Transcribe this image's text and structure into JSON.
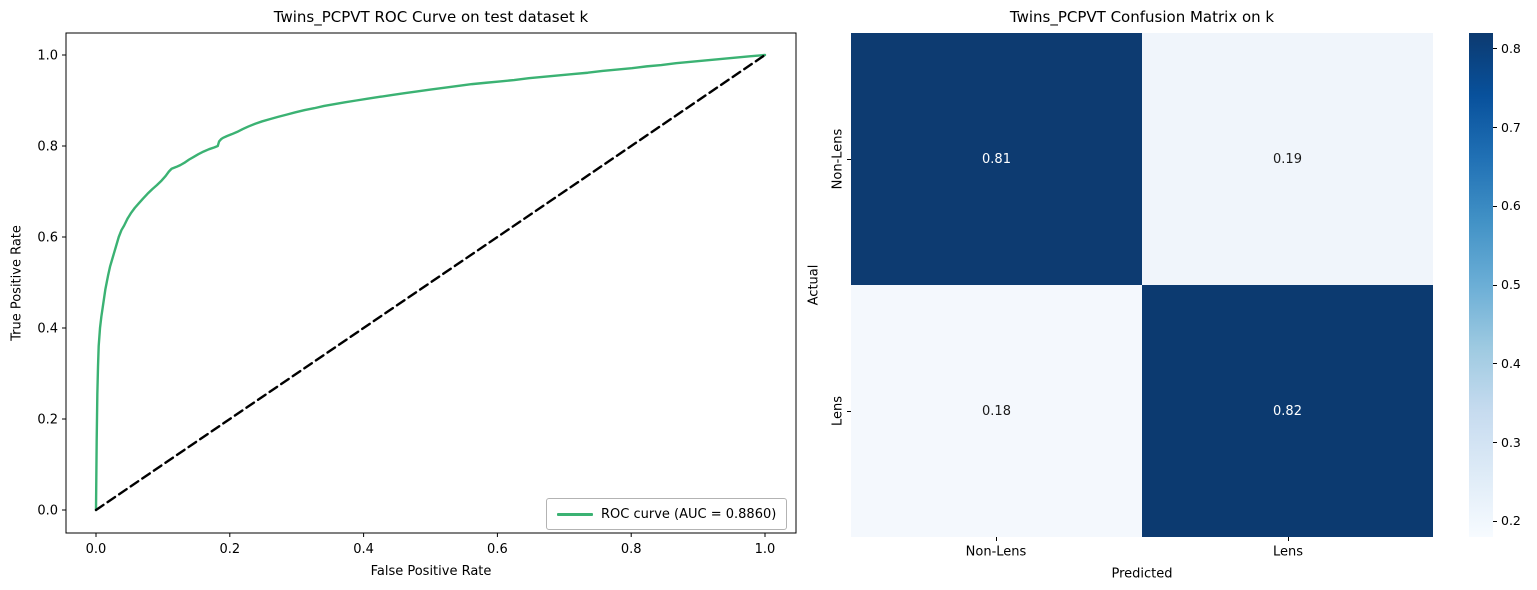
{
  "figure": {
    "background": "#ffffff",
    "accent_green": "#3bb273",
    "accent_navy": "#0d3b71"
  },
  "chart_data": [
    {
      "type": "line",
      "title": "Twins_PCPVT ROC Curve on test dataset k",
      "xlabel": "False Positive Rate",
      "ylabel": "True Positive Rate",
      "xlim": [
        -0.045,
        1.045
      ],
      "ylim": [
        -0.05,
        1.05
      ],
      "xticks": [
        0.0,
        0.2,
        0.4,
        0.6,
        0.8,
        1.0
      ],
      "yticks": [
        0.0,
        0.2,
        0.4,
        0.6,
        0.8,
        1.0
      ],
      "grid": false,
      "auc": 0.886,
      "legend": {
        "position": "lower right",
        "label": "ROC curve (AUC = 0.8860)",
        "line_color": "#3bb273"
      },
      "series": [
        {
          "name": "ROC curve",
          "color": "#3bb273",
          "style": "solid",
          "points": [
            [
              0.0,
              0.0
            ],
            [
              0.001,
              0.15
            ],
            [
              0.002,
              0.255
            ],
            [
              0.003,
              0.315
            ],
            [
              0.004,
              0.36
            ],
            [
              0.006,
              0.4
            ],
            [
              0.008,
              0.425
            ],
            [
              0.01,
              0.445
            ],
            [
              0.012,
              0.465
            ],
            [
              0.014,
              0.485
            ],
            [
              0.016,
              0.5
            ],
            [
              0.018,
              0.515
            ],
            [
              0.021,
              0.535
            ],
            [
              0.024,
              0.55
            ],
            [
              0.027,
              0.565
            ],
            [
              0.03,
              0.58
            ],
            [
              0.034,
              0.6
            ],
            [
              0.038,
              0.615
            ],
            [
              0.042,
              0.625
            ],
            [
              0.047,
              0.64
            ],
            [
              0.052,
              0.652
            ],
            [
              0.058,
              0.664
            ],
            [
              0.064,
              0.674
            ],
            [
              0.07,
              0.684
            ],
            [
              0.077,
              0.695
            ],
            [
              0.084,
              0.705
            ],
            [
              0.091,
              0.714
            ],
            [
              0.098,
              0.724
            ],
            [
              0.104,
              0.734
            ],
            [
              0.109,
              0.744
            ],
            [
              0.113,
              0.75
            ],
            [
              0.12,
              0.754
            ],
            [
              0.126,
              0.758
            ],
            [
              0.132,
              0.763
            ],
            [
              0.139,
              0.77
            ],
            [
              0.146,
              0.776
            ],
            [
              0.153,
              0.782
            ],
            [
              0.161,
              0.788
            ],
            [
              0.169,
              0.793
            ],
            [
              0.177,
              0.797
            ],
            [
              0.182,
              0.8
            ],
            [
              0.184,
              0.81
            ],
            [
              0.187,
              0.815
            ],
            [
              0.19,
              0.818
            ],
            [
              0.196,
              0.822
            ],
            [
              0.203,
              0.826
            ],
            [
              0.211,
              0.831
            ],
            [
              0.219,
              0.837
            ],
            [
              0.228,
              0.843
            ],
            [
              0.238,
              0.849
            ],
            [
              0.248,
              0.854
            ],
            [
              0.26,
              0.859
            ],
            [
              0.272,
              0.864
            ],
            [
              0.285,
              0.869
            ],
            [
              0.298,
              0.874
            ],
            [
              0.312,
              0.879
            ],
            [
              0.326,
              0.883
            ],
            [
              0.341,
              0.888
            ],
            [
              0.356,
              0.892
            ],
            [
              0.372,
              0.896
            ],
            [
              0.389,
              0.9
            ],
            [
              0.406,
              0.904
            ],
            [
              0.424,
              0.908
            ],
            [
              0.442,
              0.912
            ],
            [
              0.461,
              0.916
            ],
            [
              0.48,
              0.92
            ],
            [
              0.5,
              0.924
            ],
            [
              0.52,
              0.928
            ],
            [
              0.541,
              0.932
            ],
            [
              0.562,
              0.936
            ],
            [
              0.583,
              0.939
            ],
            [
              0.604,
              0.942
            ],
            [
              0.625,
              0.945
            ],
            [
              0.647,
              0.949
            ],
            [
              0.669,
              0.952
            ],
            [
              0.691,
              0.955
            ],
            [
              0.713,
              0.958
            ],
            [
              0.735,
              0.961
            ],
            [
              0.757,
              0.965
            ],
            [
              0.779,
              0.968
            ],
            [
              0.801,
              0.971
            ],
            [
              0.823,
              0.975
            ],
            [
              0.845,
              0.978
            ],
            [
              0.867,
              0.982
            ],
            [
              0.889,
              0.985
            ],
            [
              0.911,
              0.988
            ],
            [
              0.933,
              0.991
            ],
            [
              0.955,
              0.994
            ],
            [
              0.977,
              0.997
            ],
            [
              1.0,
              1.0
            ]
          ]
        },
        {
          "name": "chance diagonal",
          "color": "#000000",
          "style": "dashed",
          "points": [
            [
              0.0,
              0.0
            ],
            [
              1.0,
              1.0
            ]
          ]
        }
      ]
    },
    {
      "type": "heatmap",
      "title": "Twins_PCPVT Confusion Matrix on k",
      "xlabel": "Predicted",
      "ylabel": "Actual",
      "x_categories": [
        "Non-Lens",
        "Lens"
      ],
      "y_categories": [
        "Non-Lens",
        "Lens"
      ],
      "values": [
        [
          0.81,
          0.19
        ],
        [
          0.18,
          0.82
        ]
      ],
      "cell_colors": [
        [
          "#0d3b71",
          "#f0f5fb"
        ],
        [
          "#f4f8fd",
          "#0c3a70"
        ]
      ],
      "text_colors": [
        [
          "#ffffff",
          "#1a1a1a"
        ],
        [
          "#1a1a1a",
          "#ffffff"
        ]
      ],
      "colorbar": {
        "colormap": "Blues",
        "vmin": 0.18,
        "vmax": 0.82,
        "ticks": [
          0.8,
          0.7,
          0.6,
          0.5,
          0.4,
          0.3,
          0.2
        ],
        "gradient": [
          "#0c3a70",
          "#08519c",
          "#2171b5",
          "#4292c6",
          "#6baed6",
          "#9ecae1",
          "#c6dbef",
          "#deebf7",
          "#f7fbff"
        ]
      }
    }
  ]
}
